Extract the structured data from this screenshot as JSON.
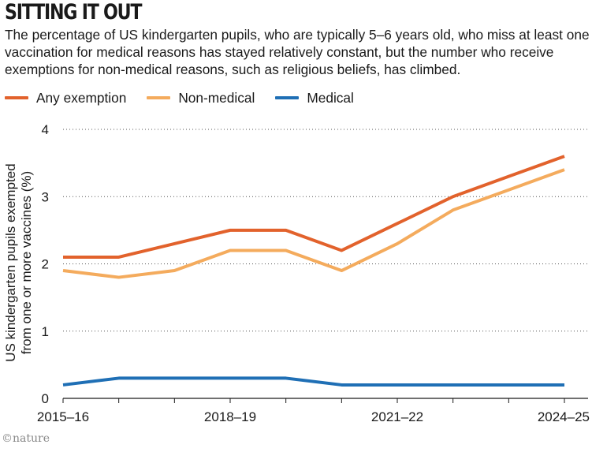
{
  "header": {
    "title": "SITTING IT OUT",
    "subtitle": "The percentage of US kindergarten pupils, who are typically 5–6 years old, who miss at least one vaccination for medical reasons has stayed relatively constant, but the number who receive exemptions for non-medical reasons, such as religious beliefs, has climbed."
  },
  "credit": "©nature",
  "chart_data": {
    "type": "line",
    "title": "SITTING IT OUT",
    "ylabel_line1": "US kindergarten pupils exempted",
    "ylabel_line2": "from one or more vaccines (%)",
    "xlabel": "",
    "ylim": [
      0,
      4
    ],
    "yticks": [
      "0",
      "1",
      "2",
      "3",
      "4"
    ],
    "grid": "dotted horizontal",
    "legend_position": "top-left",
    "x": [
      "2015–16",
      "2016–17",
      "2017–18",
      "2018–19",
      "2019–20",
      "2020–21",
      "2021–22",
      "2022–23",
      "2023–24",
      "2024–25"
    ],
    "xtick_labels": [
      "2015–16",
      "2018–19",
      "2021–22",
      "2024–25"
    ],
    "series": [
      {
        "name": "Any exemption",
        "color": "#e2622c",
        "values": [
          2.1,
          2.1,
          2.3,
          2.5,
          2.5,
          2.2,
          2.6,
          3.0,
          3.3,
          3.6
        ]
      },
      {
        "name": "Non-medical",
        "color": "#f4ab5d",
        "values": [
          1.9,
          1.8,
          1.9,
          2.2,
          2.2,
          1.9,
          2.3,
          2.8,
          3.1,
          3.4
        ]
      },
      {
        "name": "Medical",
        "color": "#1f6fb5",
        "values": [
          0.2,
          0.3,
          0.3,
          0.3,
          0.3,
          0.2,
          0.2,
          0.2,
          0.2,
          0.2
        ]
      }
    ]
  }
}
